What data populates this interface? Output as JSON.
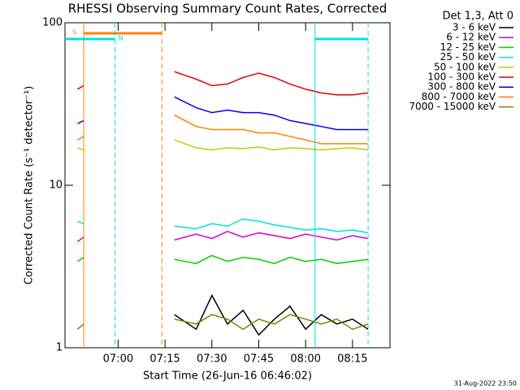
{
  "chart_data": {
    "type": "line",
    "title": "RHESSI Observing Summary Count Rates, Corrected",
    "xlabel": "Start Time (26-Jun-16 06:46:02)",
    "ylabel": "Corrected Count Rate (s⁻¹ detector⁻¹)",
    "legend_title": "Det 1,3, Att 0",
    "timestamp": "31-Aug-2022 23:50",
    "log_y": true,
    "x": [
      "06:47",
      "06:49",
      "07:00",
      "07:18",
      "07:25",
      "07:30",
      "07:35",
      "07:40",
      "07:45",
      "07:50",
      "07:55",
      "08:00",
      "08:05",
      "08:10",
      "08:15",
      "08:20"
    ],
    "xlim": [
      "06:43",
      "08:27"
    ],
    "xticks": [
      "07:00",
      "07:15",
      "07:30",
      "07:45",
      "08:00",
      "08:15"
    ],
    "ylim": [
      1,
      100
    ],
    "yticks": [
      1,
      10,
      100
    ],
    "series": [
      {
        "name": "3 - 6 keV",
        "color": "#000000",
        "values": [
          null,
          null,
          null,
          1.6,
          1.3,
          2.1,
          1.4,
          1.7,
          1.2,
          1.5,
          1.8,
          1.3,
          1.6,
          1.4,
          1.5,
          1.3
        ]
      },
      {
        "name": "6 - 12 keV",
        "color": "#d000d0",
        "values": [
          4.5,
          4.8,
          null,
          4.6,
          5.0,
          4.7,
          5.2,
          4.8,
          5.1,
          4.9,
          4.7,
          5.0,
          4.8,
          4.6,
          4.9,
          4.7
        ]
      },
      {
        "name": "12 - 25 keV",
        "color": "#00d000",
        "values": [
          3.4,
          3.6,
          null,
          3.5,
          3.3,
          3.7,
          3.4,
          3.6,
          3.5,
          3.3,
          3.6,
          3.4,
          3.5,
          3.3,
          3.4,
          3.5
        ]
      },
      {
        "name": "25 - 50 keV",
        "color": "#00e0e0",
        "values": [
          6.0,
          5.8,
          null,
          5.6,
          5.4,
          5.8,
          5.6,
          6.2,
          6.0,
          5.7,
          5.5,
          5.3,
          5.4,
          5.2,
          5.3,
          5.1
        ]
      },
      {
        "name": "50 - 100 keV",
        "color": "#c8c800",
        "values": [
          17,
          16.5,
          null,
          19,
          17,
          16.5,
          17,
          16.8,
          17.2,
          16.5,
          17,
          16.8,
          16.5,
          16.8,
          17,
          16.5
        ]
      },
      {
        "name": "100 - 300 keV",
        "color": "#e00000",
        "values": [
          39,
          41,
          null,
          50,
          45,
          41,
          42,
          46,
          49,
          46,
          42,
          39,
          37,
          36,
          36,
          37
        ]
      },
      {
        "name": "300 - 800 keV",
        "color": "#0000f0",
        "values": [
          24,
          25,
          null,
          35,
          30,
          28,
          29,
          28,
          28,
          27,
          25,
          24,
          23,
          22,
          22,
          22
        ]
      },
      {
        "name": "800 - 7000 keV",
        "color": "#ff8000",
        "values": [
          19,
          20,
          null,
          27,
          23,
          22,
          22,
          22,
          21,
          21,
          20,
          19,
          18,
          18,
          18,
          18
        ]
      },
      {
        "name": "7000 - 15000 keV",
        "color": "#808000",
        "values": [
          1.3,
          1.4,
          null,
          1.5,
          1.4,
          1.6,
          1.5,
          1.3,
          1.5,
          1.4,
          1.6,
          1.5,
          1.4,
          1.5,
          1.3,
          1.4
        ]
      }
    ],
    "flags": [
      {
        "label": "S",
        "color": "#ff8000",
        "intervals": [
          [
            "06:49",
            "07:14"
          ]
        ]
      },
      {
        "label": "N",
        "color": "#00e0e0",
        "intervals": [
          [
            "06:43",
            "06:59"
          ],
          [
            "08:03",
            "08:20"
          ]
        ]
      }
    ]
  }
}
